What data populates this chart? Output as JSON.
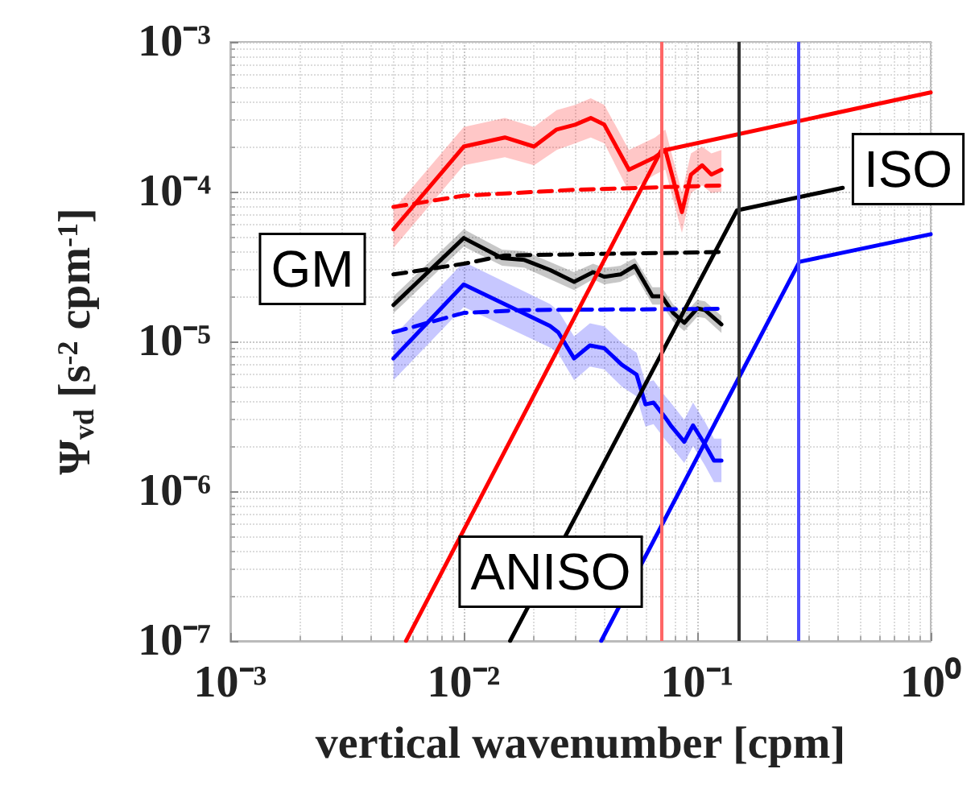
{
  "chart_data": {
    "type": "line",
    "xlabel": "vertical wavenumber [cpm]",
    "ylabel": "Ψ$_{vd}$ [s$^{-2}$ cpm$^{-1}$]",
    "log": "xy",
    "grid": true,
    "marker": "none",
    "xlim": [
      0.001,
      1
    ],
    "ylim": [
      1e-07,
      0.001
    ],
    "xticks": [
      {
        "value": 0.001,
        "label": "10⁻³"
      },
      {
        "value": 0.01,
        "label": "10⁻²"
      },
      {
        "value": 0.1,
        "label": "10⁻¹"
      },
      {
        "value": 1,
        "label": "10⁰"
      }
    ],
    "yticks": [
      {
        "value": 1e-07,
        "label": "10⁻⁷"
      },
      {
        "value": 1e-06,
        "label": "10⁻⁶"
      },
      {
        "value": 1e-05,
        "label": "10⁻⁵"
      },
      {
        "value": 0.0001,
        "label": "10⁻⁴"
      },
      {
        "value": 0.001,
        "label": "10⁻³"
      }
    ],
    "series": [
      {
        "color": "#ff0000",
        "x": [
          0.005,
          0.01,
          0.015,
          0.02,
          0.025,
          0.03,
          0.035,
          0.04,
          0.051,
          0.066,
          0.073,
          0.086,
          0.094,
          0.105,
          0.115,
          0.127
        ],
        "values": [
          5.6e-05,
          0.0002,
          0.00023,
          0.0002,
          0.00026,
          0.00028,
          0.00031,
          0.00028,
          0.00014,
          0.00017,
          0.00019,
          7.3e-05,
          0.00013,
          0.00015,
          0.00013,
          0.00014
        ],
        "lower": [
          4.2e-05,
          0.00015,
          0.00017,
          0.00015,
          0.00019,
          0.00021,
          0.00023,
          0.00021,
          0.0001,
          0.00013,
          0.00014,
          5.3e-05,
          9.8e-05,
          0.00011,
          9.8e-05,
          0.0001
        ],
        "upper": [
          7.6e-05,
          0.00027,
          0.00031,
          0.00027,
          0.00035,
          0.00038,
          0.00042,
          0.00038,
          0.00019,
          0.00023,
          0.00026,
          9.9e-05,
          0.00018,
          0.0002,
          0.00018,
          0.00019
        ]
      },
      {
        "color": "#000000",
        "x": [
          0.005,
          0.01,
          0.0146,
          0.0182,
          0.0234,
          0.0297,
          0.0358,
          0.04,
          0.0469,
          0.054,
          0.0643,
          0.0705,
          0.0789,
          0.088,
          0.1,
          0.108,
          0.127
        ],
        "values": [
          1.75e-05,
          4.9e-05,
          3.6e-05,
          3.5e-05,
          3e-05,
          2.5e-05,
          2.9e-05,
          2.7e-05,
          2.8e-05,
          3.2e-05,
          2e-05,
          2e-05,
          1.55e-05,
          1.33e-05,
          1.66e-05,
          1.62e-05,
          1.3e-05
        ],
        "lower": [
          1.54e-05,
          4.3e-05,
          3.2e-05,
          3.1e-05,
          2.6e-05,
          2.2e-05,
          2.6e-05,
          2.4e-05,
          2.5e-05,
          2.8e-05,
          1.76e-05,
          1.76e-05,
          1.36e-05,
          1.17e-05,
          1.46e-05,
          1.43e-05,
          1.14e-05
        ],
        "upper": [
          2e-05,
          5.6e-05,
          4.1e-05,
          4e-05,
          3.4e-05,
          2.9e-05,
          3.3e-05,
          3.1e-05,
          3.2e-05,
          3.6e-05,
          2.3e-05,
          2.3e-05,
          1.77e-05,
          1.52e-05,
          1.89e-05,
          1.85e-05,
          1.48e-05
        ]
      },
      {
        "color": "#0000ff",
        "x": [
          0.005,
          0.01,
          0.0234,
          0.0254,
          0.0297,
          0.0347,
          0.04,
          0.0475,
          0.055,
          0.06,
          0.065,
          0.073,
          0.077,
          0.088,
          0.096,
          0.108,
          0.118,
          0.127
        ],
        "values": [
          7.7e-06,
          2.4e-05,
          1.27e-05,
          1.15e-05,
          7.7e-06,
          9.4e-06,
          9e-06,
          7e-06,
          6e-06,
          3.8e-06,
          3.9e-06,
          3.1e-06,
          2.75e-06,
          2.14e-06,
          2.75e-06,
          2.05e-06,
          1.6e-06,
          1.6e-06
        ],
        "lower": [
          5.5e-06,
          1.7e-05,
          9.1e-06,
          8.3e-06,
          5.5e-06,
          6.8e-06,
          6.5e-06,
          5e-06,
          4.3e-06,
          2.7e-06,
          2.8e-06,
          2.2e-06,
          2e-06,
          1.54e-06,
          2e-06,
          1.48e-06,
          1.15e-06,
          1.15e-06
        ],
        "upper": [
          1.08e-05,
          3.4e-05,
          1.78e-05,
          1.6e-05,
          1.08e-05,
          1.32e-05,
          1.26e-05,
          9.8e-06,
          8.4e-06,
          5.3e-06,
          5.5e-06,
          4.3e-06,
          3.9e-06,
          3e-06,
          3.9e-06,
          2.9e-06,
          2.24e-06,
          2.24e-06
        ]
      },
      {
        "color": "#ff0000",
        "line_style": "dashed",
        "x": [
          0.005,
          0.01,
          0.03,
          0.127
        ],
        "values": [
          7.9e-05,
          9.4e-05,
          0.000103,
          0.00011
        ]
      },
      {
        "color": "#000000",
        "line_style": "dashed",
        "x": [
          0.005,
          0.01,
          0.015,
          0.127
        ],
        "values": [
          2.8e-05,
          3.3e-05,
          3.75e-05,
          3.95e-05
        ]
      },
      {
        "color": "#0000ff",
        "line_style": "dashed",
        "x": [
          0.005,
          0.01,
          0.018,
          0.127
        ],
        "values": [
          1.15e-05,
          1.55e-05,
          1.62e-05,
          1.65e-05
        ]
      },
      {
        "color": "#ff0000",
        "x": [
          0.00566,
          0.07,
          1
        ],
        "values": [
          1e-07,
          0.000187,
          0.00046
        ]
      },
      {
        "color": "#000000",
        "x": [
          0.0158,
          0.148,
          0.42
        ],
        "values": [
          1e-07,
          7.5e-05,
          0.000106
        ]
      },
      {
        "color": "#0000ff",
        "x": [
          0.0388,
          0.274,
          1
        ],
        "values": [
          1e-07,
          3.4e-05,
          5.2e-05
        ]
      }
    ],
    "ref_lines": [
      {
        "axis": "x",
        "value": 0.07,
        "color": "#ff6666"
      },
      {
        "axis": "x",
        "value": 0.148,
        "color": "#333333"
      },
      {
        "axis": "x",
        "value": 0.274,
        "color": "#4d4dff"
      }
    ],
    "annotations": [
      "GM",
      "ISO",
      "ANISO"
    ]
  }
}
